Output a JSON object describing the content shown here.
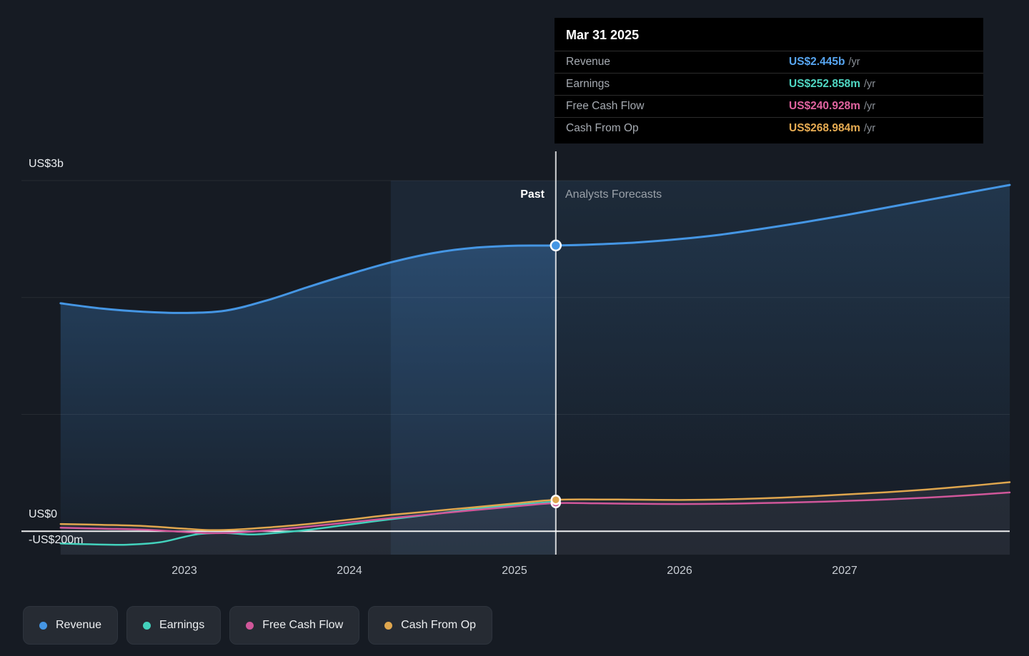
{
  "tooltip": {
    "title": "Mar 31 2025",
    "rows": [
      {
        "label": "Revenue",
        "value": "US$2.445b",
        "suffix": "/yr",
        "color": "#57a5f0"
      },
      {
        "label": "Earnings",
        "value": "US$252.858m",
        "suffix": "/yr",
        "color": "#4fd6c2"
      },
      {
        "label": "Free Cash Flow",
        "value": "US$240.928m",
        "suffix": "/yr",
        "color": "#e0639f"
      },
      {
        "label": "Cash From Op",
        "value": "US$268.984m",
        "suffix": "/yr",
        "color": "#e6ab52"
      }
    ]
  },
  "chart": {
    "labels": {
      "past": "Past",
      "forecast": "Analysts Forecasts"
    },
    "y_axis": [
      "US$3b",
      "US$0",
      "-US$200m"
    ],
    "x_ticks": [
      "2023",
      "2024",
      "2025",
      "2026",
      "2027"
    ]
  },
  "legend": [
    {
      "label": "Revenue",
      "color": "#4596e4"
    },
    {
      "label": "Earnings",
      "color": "#43d2bd"
    },
    {
      "label": "Free Cash Flow",
      "color": "#d0579a"
    },
    {
      "label": "Cash From Op",
      "color": "#dfa64e"
    }
  ],
  "chart_data": {
    "type": "line",
    "title": "",
    "x_unit": "year",
    "y_unit": "US$m",
    "x_range": [
      2022.1,
      2028.0
    ],
    "y_range_m": [
      -200,
      3000
    ],
    "gridlines_m": [
      1000,
      2000,
      3000
    ],
    "zero_line_m": 0,
    "divider_x": 2025.25,
    "highlight_band": [
      2024.25,
      2025.25
    ],
    "legend_position": "bottom-left",
    "annotations": [
      "Past",
      "Analysts Forecasts"
    ],
    "series": [
      {
        "name": "Earnings",
        "color": "#43d2bd",
        "width": 2.5,
        "past": [
          [
            2022.25,
            -105
          ],
          [
            2022.45,
            -112
          ],
          [
            2022.65,
            -115
          ],
          [
            2022.85,
            -95
          ],
          [
            2023.0,
            -48
          ],
          [
            2023.1,
            -22
          ],
          [
            2023.25,
            -15
          ],
          [
            2023.4,
            -28
          ],
          [
            2023.55,
            -15
          ],
          [
            2023.75,
            12
          ],
          [
            2024.0,
            58
          ],
          [
            2024.25,
            103
          ],
          [
            2024.5,
            145
          ],
          [
            2024.75,
            190
          ],
          [
            2025.0,
            225
          ],
          [
            2025.25,
            252.858
          ]
        ],
        "forecast": []
      },
      {
        "name": "Free Cash Flow",
        "color": "#d0579a",
        "width": 2.5,
        "past": [
          [
            2022.25,
            30
          ],
          [
            2022.5,
            22
          ],
          [
            2022.75,
            14
          ],
          [
            2023.0,
            -6
          ],
          [
            2023.15,
            -16
          ],
          [
            2023.3,
            -12
          ],
          [
            2023.5,
            6
          ],
          [
            2023.75,
            40
          ],
          [
            2024.0,
            76
          ],
          [
            2024.25,
            112
          ],
          [
            2024.5,
            146
          ],
          [
            2024.75,
            180
          ],
          [
            2025.0,
            212
          ],
          [
            2025.25,
            240.928
          ]
        ],
        "forecast": [
          [
            2025.25,
            240.928
          ],
          [
            2025.5,
            239
          ],
          [
            2025.75,
            235
          ],
          [
            2026.0,
            233
          ],
          [
            2026.25,
            235
          ],
          [
            2026.5,
            241
          ],
          [
            2026.75,
            249
          ],
          [
            2027.0,
            259
          ],
          [
            2027.25,
            272
          ],
          [
            2027.5,
            288
          ],
          [
            2027.75,
            308
          ],
          [
            2028.0,
            332
          ]
        ]
      },
      {
        "name": "Cash From Op",
        "color": "#dfa64e",
        "width": 2.5,
        "past": [
          [
            2022.25,
            62
          ],
          [
            2022.5,
            55
          ],
          [
            2022.75,
            45
          ],
          [
            2023.0,
            22
          ],
          [
            2023.15,
            10
          ],
          [
            2023.3,
            14
          ],
          [
            2023.5,
            32
          ],
          [
            2023.75,
            62
          ],
          [
            2024.0,
            100
          ],
          [
            2024.25,
            140
          ],
          [
            2024.5,
            172
          ],
          [
            2024.75,
            205
          ],
          [
            2025.0,
            238
          ],
          [
            2025.25,
            268.984
          ]
        ],
        "forecast": [
          [
            2025.25,
            268.984
          ],
          [
            2025.5,
            272
          ],
          [
            2025.75,
            270
          ],
          [
            2026.0,
            268
          ],
          [
            2026.25,
            272
          ],
          [
            2026.5,
            282
          ],
          [
            2026.75,
            296
          ],
          [
            2027.0,
            314
          ],
          [
            2027.25,
            334
          ],
          [
            2027.5,
            357
          ],
          [
            2027.75,
            387
          ],
          [
            2028.0,
            420
          ]
        ]
      },
      {
        "name": "Revenue",
        "color": "#4596e4",
        "width": 3,
        "past": [
          [
            2022.25,
            1950
          ],
          [
            2022.5,
            1905
          ],
          [
            2022.75,
            1878
          ],
          [
            2023.0,
            1868
          ],
          [
            2023.25,
            1888
          ],
          [
            2023.5,
            1975
          ],
          [
            2023.75,
            2090
          ],
          [
            2024.0,
            2200
          ],
          [
            2024.25,
            2300
          ],
          [
            2024.5,
            2378
          ],
          [
            2024.75,
            2425
          ],
          [
            2025.0,
            2443
          ],
          [
            2025.25,
            2445
          ]
        ],
        "forecast": [
          [
            2025.25,
            2445
          ],
          [
            2025.5,
            2455
          ],
          [
            2025.75,
            2472
          ],
          [
            2026.0,
            2500
          ],
          [
            2026.25,
            2538
          ],
          [
            2026.5,
            2588
          ],
          [
            2026.75,
            2643
          ],
          [
            2027.0,
            2703
          ],
          [
            2027.25,
            2768
          ],
          [
            2027.5,
            2833
          ],
          [
            2027.75,
            2898
          ],
          [
            2028.0,
            2963
          ]
        ]
      }
    ],
    "markers": [
      {
        "series": "Revenue",
        "x": 2025.25,
        "value": 2445
      },
      {
        "series": "Free Cash Flow",
        "x": 2025.25,
        "value": 240.928
      },
      {
        "series": "Cash From Op",
        "x": 2025.25,
        "value": 268.984
      }
    ]
  }
}
